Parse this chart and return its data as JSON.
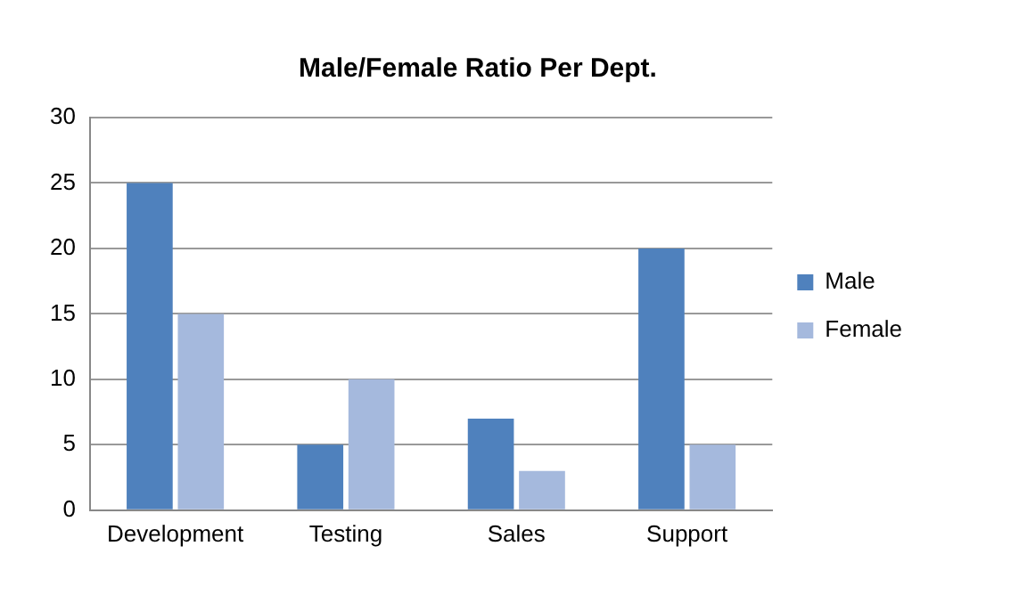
{
  "chart_data": {
    "type": "bar",
    "title": "Male/Female Ratio Per Dept.",
    "categories": [
      "Development",
      "Testing",
      "Sales",
      "Support"
    ],
    "series": [
      {
        "name": "Male",
        "color": "#4f81bd",
        "values": [
          25,
          5,
          7,
          20
        ]
      },
      {
        "name": "Female",
        "color": "#a5b9dd",
        "values": [
          15,
          10,
          3,
          5
        ]
      }
    ],
    "ylim": [
      0,
      30
    ],
    "yticks": [
      0,
      5,
      10,
      15,
      20,
      25,
      30
    ],
    "grid": "y",
    "legend": "right"
  }
}
